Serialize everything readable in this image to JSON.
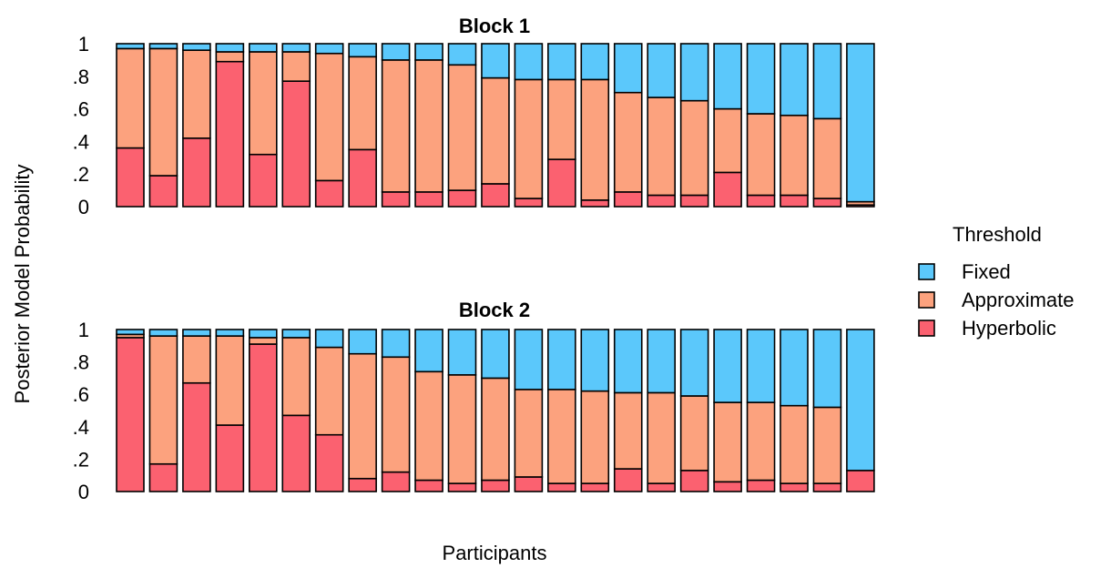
{
  "chart_data": {
    "type": "bar",
    "stacked": true,
    "ylabel": "Posterior Model Probability",
    "xlabel": "Participants",
    "ylim": [
      0,
      1
    ],
    "yticks": [
      0,
      0.2,
      0.4,
      0.6,
      0.8,
      1
    ],
    "ytick_labels": [
      "0",
      ".2",
      ".4",
      ".6",
      ".8",
      "1"
    ],
    "legend": {
      "title": "Threshold",
      "placement": "right",
      "entries": [
        "Fixed",
        "Approximate",
        "Hyperbolic"
      ]
    },
    "colors": {
      "Fixed": "#5bc8fb",
      "Approximate": "#fca27e",
      "Hyperbolic": "#fb6170"
    },
    "panels": [
      {
        "title": "Block 1",
        "series": [
          {
            "name": "Hyperbolic",
            "values": [
              0.36,
              0.19,
              0.42,
              0.89,
              0.32,
              0.77,
              0.16,
              0.35,
              0.09,
              0.09,
              0.1,
              0.14,
              0.05,
              0.29,
              0.04,
              0.09,
              0.07,
              0.07,
              0.21,
              0.07,
              0.07,
              0.05,
              0.01
            ]
          },
          {
            "name": "Approximate",
            "values": [
              0.61,
              0.78,
              0.54,
              0.06,
              0.63,
              0.18,
              0.78,
              0.57,
              0.81,
              0.81,
              0.77,
              0.65,
              0.73,
              0.49,
              0.74,
              0.61,
              0.6,
              0.58,
              0.39,
              0.5,
              0.49,
              0.49,
              0.02
            ]
          },
          {
            "name": "Fixed",
            "values": [
              0.03,
              0.03,
              0.04,
              0.05,
              0.05,
              0.05,
              0.06,
              0.08,
              0.1,
              0.1,
              0.13,
              0.21,
              0.22,
              0.22,
              0.22,
              0.3,
              0.33,
              0.35,
              0.4,
              0.43,
              0.44,
              0.46,
              0.97
            ]
          }
        ]
      },
      {
        "title": "Block 2",
        "series": [
          {
            "name": "Hyperbolic",
            "values": [
              0.95,
              0.17,
              0.67,
              0.41,
              0.91,
              0.47,
              0.35,
              0.08,
              0.12,
              0.07,
              0.05,
              0.07,
              0.09,
              0.05,
              0.05,
              0.14,
              0.05,
              0.13,
              0.06,
              0.07,
              0.05,
              0.05,
              0.13
            ]
          },
          {
            "name": "Approximate",
            "values": [
              0.02,
              0.79,
              0.29,
              0.55,
              0.04,
              0.48,
              0.54,
              0.77,
              0.71,
              0.67,
              0.67,
              0.63,
              0.54,
              0.58,
              0.57,
              0.47,
              0.56,
              0.46,
              0.49,
              0.48,
              0.48,
              0.47,
              0.0
            ]
          },
          {
            "name": "Fixed",
            "values": [
              0.03,
              0.04,
              0.04,
              0.04,
              0.05,
              0.05,
              0.11,
              0.15,
              0.17,
              0.26,
              0.28,
              0.3,
              0.37,
              0.37,
              0.38,
              0.39,
              0.39,
              0.41,
              0.45,
              0.45,
              0.47,
              0.48,
              0.87
            ]
          }
        ]
      }
    ]
  }
}
